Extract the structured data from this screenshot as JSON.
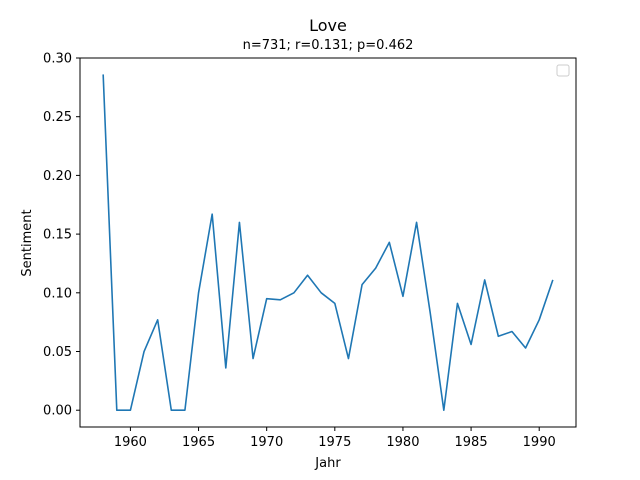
{
  "chart_data": {
    "type": "line",
    "title": "Love",
    "subtitle": "n=731; r=0.131; p=0.462",
    "xlabel": "Jahr",
    "ylabel": "Sentiment",
    "xlim": [
      1956.3,
      1992.7
    ],
    "ylim": [
      -0.0143,
      0.3
    ],
    "x_ticks": [
      1960,
      1965,
      1970,
      1975,
      1980,
      1985,
      1990
    ],
    "y_ticks": [
      0.0,
      0.05,
      0.1,
      0.15,
      0.2,
      0.25,
      0.3
    ],
    "y_tick_labels": [
      "0.00",
      "0.05",
      "0.10",
      "0.15",
      "0.20",
      "0.25",
      "0.30"
    ],
    "grid": false,
    "legend": "top-right (empty)",
    "color": "#1f77b4",
    "series": [
      {
        "x": [
          1958,
          1959,
          1960,
          1961,
          1962,
          1963,
          1964,
          1965,
          1966,
          1967,
          1968,
          1969,
          1970,
          1971,
          1972,
          1973,
          1974,
          1975,
          1976,
          1977,
          1978,
          1979,
          1980,
          1981,
          1982,
          1983,
          1984,
          1985,
          1986,
          1987,
          1988,
          1989,
          1990,
          1991
        ],
        "values": [
          0.286,
          0.0,
          0.0,
          0.05,
          0.077,
          0.0,
          0.0,
          0.1,
          0.167,
          0.036,
          0.16,
          0.044,
          0.095,
          0.094,
          0.1,
          0.115,
          0.1,
          0.091,
          0.044,
          0.107,
          0.121,
          0.143,
          0.097,
          0.16,
          0.083,
          0.0,
          0.091,
          0.056,
          0.111,
          0.063,
          0.067,
          0.053,
          0.077,
          0.111
        ]
      }
    ]
  }
}
